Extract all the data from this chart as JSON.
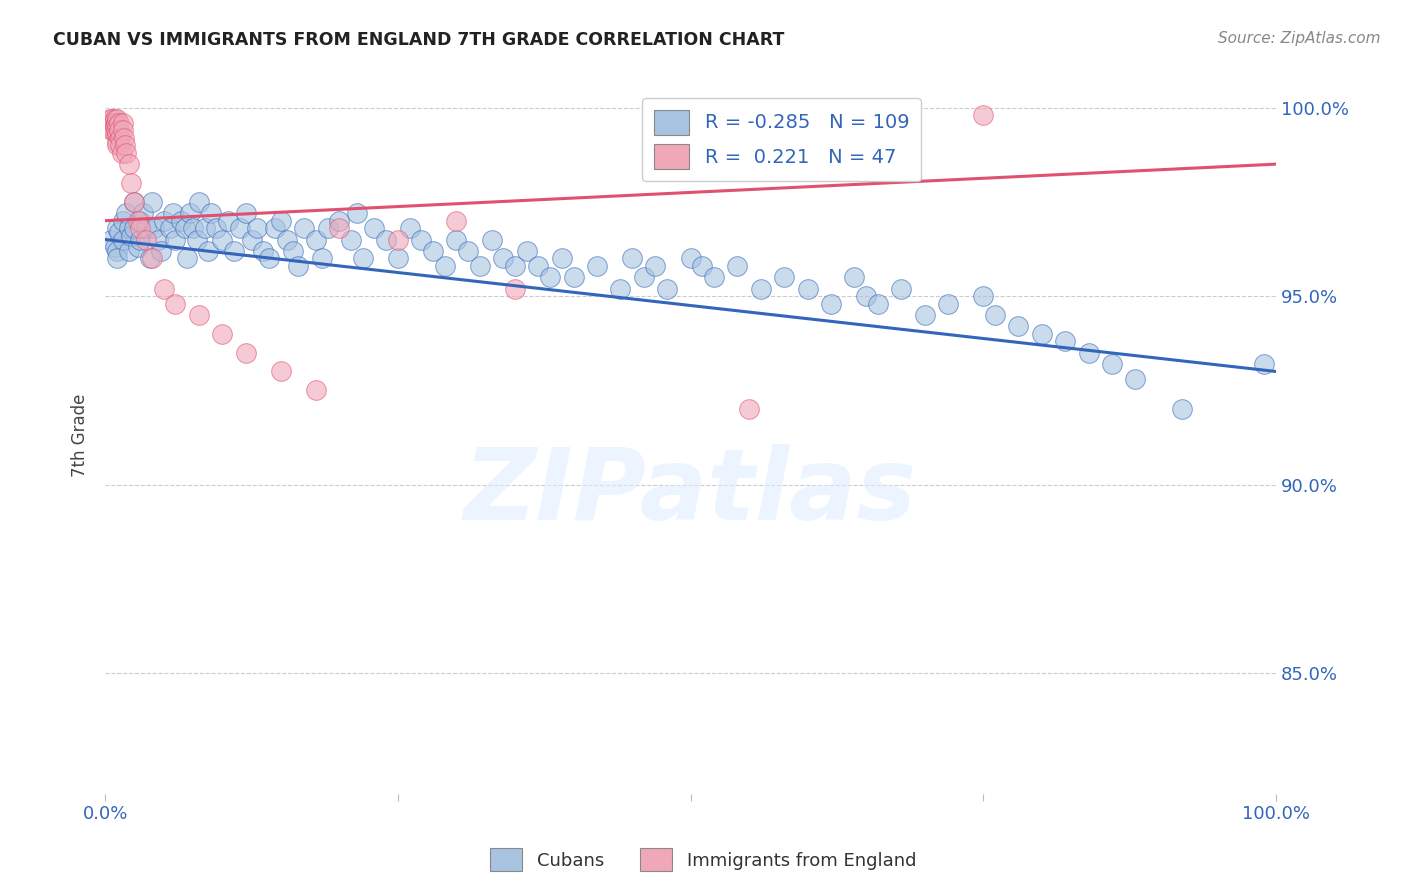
{
  "title": "CUBAN VS IMMIGRANTS FROM ENGLAND 7TH GRADE CORRELATION CHART",
  "source": "Source: ZipAtlas.com",
  "ylabel": "7th Grade",
  "xlim": [
    0.0,
    1.0
  ],
  "ylim": [
    0.818,
    1.008
  ],
  "yticks": [
    0.85,
    0.9,
    0.95,
    1.0
  ],
  "ytick_labels": [
    "85.0%",
    "90.0%",
    "95.0%",
    "100.0%"
  ],
  "legend_labels": [
    "Cubans",
    "Immigrants from England"
  ],
  "blue_R": -0.285,
  "blue_N": 109,
  "pink_R": 0.221,
  "pink_N": 47,
  "blue_color": "#a8c4e0",
  "pink_color": "#f0a8b8",
  "blue_line_color": "#3366bb",
  "pink_line_color": "#e05070",
  "watermark": "ZIPatlas",
  "background_color": "#ffffff",
  "grid_color": "#cccccc",
  "blue_scatter_x": [
    0.005,
    0.008,
    0.01,
    0.01,
    0.01,
    0.012,
    0.015,
    0.015,
    0.018,
    0.02,
    0.02,
    0.022,
    0.025,
    0.025,
    0.028,
    0.03,
    0.03,
    0.032,
    0.035,
    0.038,
    0.04,
    0.042,
    0.045,
    0.048,
    0.05,
    0.055,
    0.058,
    0.06,
    0.065,
    0.068,
    0.07,
    0.072,
    0.075,
    0.078,
    0.08,
    0.085,
    0.088,
    0.09,
    0.095,
    0.1,
    0.105,
    0.11,
    0.115,
    0.12,
    0.125,
    0.13,
    0.135,
    0.14,
    0.145,
    0.15,
    0.155,
    0.16,
    0.165,
    0.17,
    0.18,
    0.185,
    0.19,
    0.2,
    0.21,
    0.215,
    0.22,
    0.23,
    0.24,
    0.25,
    0.26,
    0.27,
    0.28,
    0.29,
    0.3,
    0.31,
    0.32,
    0.33,
    0.34,
    0.35,
    0.36,
    0.37,
    0.38,
    0.39,
    0.4,
    0.42,
    0.44,
    0.45,
    0.46,
    0.47,
    0.48,
    0.5,
    0.51,
    0.52,
    0.54,
    0.56,
    0.58,
    0.6,
    0.62,
    0.64,
    0.65,
    0.66,
    0.68,
    0.7,
    0.72,
    0.75,
    0.76,
    0.78,
    0.8,
    0.82,
    0.84,
    0.86,
    0.88,
    0.92,
    0.99
  ],
  "blue_scatter_y": [
    0.965,
    0.963,
    0.968,
    0.962,
    0.96,
    0.967,
    0.97,
    0.965,
    0.972,
    0.968,
    0.962,
    0.966,
    0.975,
    0.968,
    0.963,
    0.97,
    0.965,
    0.972,
    0.968,
    0.96,
    0.975,
    0.968,
    0.965,
    0.962,
    0.97,
    0.968,
    0.972,
    0.965,
    0.97,
    0.968,
    0.96,
    0.972,
    0.968,
    0.965,
    0.975,
    0.968,
    0.962,
    0.972,
    0.968,
    0.965,
    0.97,
    0.962,
    0.968,
    0.972,
    0.965,
    0.968,
    0.962,
    0.96,
    0.968,
    0.97,
    0.965,
    0.962,
    0.958,
    0.968,
    0.965,
    0.96,
    0.968,
    0.97,
    0.965,
    0.972,
    0.96,
    0.968,
    0.965,
    0.96,
    0.968,
    0.965,
    0.962,
    0.958,
    0.965,
    0.962,
    0.958,
    0.965,
    0.96,
    0.958,
    0.962,
    0.958,
    0.955,
    0.96,
    0.955,
    0.958,
    0.952,
    0.96,
    0.955,
    0.958,
    0.952,
    0.96,
    0.958,
    0.955,
    0.958,
    0.952,
    0.955,
    0.952,
    0.948,
    0.955,
    0.95,
    0.948,
    0.952,
    0.945,
    0.948,
    0.95,
    0.945,
    0.942,
    0.94,
    0.938,
    0.935,
    0.932,
    0.928,
    0.92,
    0.932
  ],
  "pink_scatter_x": [
    0.003,
    0.004,
    0.005,
    0.005,
    0.006,
    0.006,
    0.007,
    0.007,
    0.008,
    0.008,
    0.009,
    0.009,
    0.01,
    0.01,
    0.01,
    0.01,
    0.01,
    0.012,
    0.012,
    0.013,
    0.013,
    0.014,
    0.015,
    0.015,
    0.016,
    0.017,
    0.018,
    0.02,
    0.022,
    0.025,
    0.028,
    0.03,
    0.035,
    0.04,
    0.05,
    0.06,
    0.08,
    0.1,
    0.12,
    0.15,
    0.18,
    0.2,
    0.25,
    0.3,
    0.35,
    0.55,
    0.75
  ],
  "pink_scatter_y": [
    0.995,
    0.997,
    0.996,
    0.994,
    0.997,
    0.995,
    0.996,
    0.994,
    0.997,
    0.995,
    0.996,
    0.994,
    0.997,
    0.995,
    0.993,
    0.991,
    0.99,
    0.996,
    0.994,
    0.992,
    0.99,
    0.988,
    0.996,
    0.994,
    0.992,
    0.99,
    0.988,
    0.985,
    0.98,
    0.975,
    0.97,
    0.968,
    0.965,
    0.96,
    0.952,
    0.948,
    0.945,
    0.94,
    0.935,
    0.93,
    0.925,
    0.968,
    0.965,
    0.97,
    0.952,
    0.92,
    0.998
  ],
  "blue_line_start_y": 0.965,
  "blue_line_end_y": 0.93,
  "pink_line_start_y": 0.97,
  "pink_line_end_y": 0.985
}
